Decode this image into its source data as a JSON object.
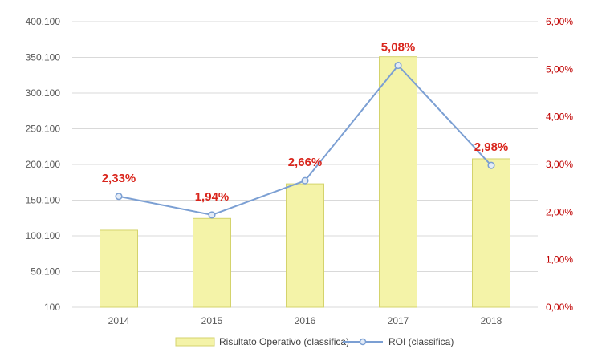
{
  "chart_data": {
    "type": "bar+line",
    "categories": [
      "2014",
      "2015",
      "2016",
      "2017",
      "2018"
    ],
    "series": [
      {
        "name": "Risultato Operativo (classifica)",
        "type": "bar",
        "axis": "left",
        "values": [
          108000,
          124500,
          173000,
          351000,
          208000
        ]
      },
      {
        "name": "ROI (classifica)",
        "type": "line",
        "axis": "right",
        "values": [
          2.33,
          1.94,
          2.66,
          5.08,
          2.98
        ],
        "labels": [
          "2,33%",
          "1,94%",
          "2,66%",
          "5,08%",
          "2,98%"
        ]
      }
    ],
    "left_axis": {
      "ylim": [
        100,
        400100
      ],
      "ticks": [
        100,
        50100,
        100100,
        150100,
        200100,
        250100,
        300100,
        350100,
        400100
      ],
      "tick_labels": [
        "100",
        "50.100",
        "100.100",
        "150.100",
        "200.100",
        "250.100",
        "300.100",
        "350.100",
        "400.100"
      ]
    },
    "right_axis": {
      "ylim": [
        0,
        6
      ],
      "ticks": [
        0,
        1,
        2,
        3,
        4,
        5,
        6
      ],
      "tick_labels": [
        "0,00%",
        "1,00%",
        "2,00%",
        "3,00%",
        "4,00%",
        "5,00%",
        "6,00%"
      ]
    },
    "legend": {
      "position": "bottom",
      "items": [
        "Risultato Operativo (classifica)",
        "ROI (classifica)"
      ]
    },
    "grid": true,
    "colors": {
      "bar_fill": "#f4f3a8",
      "bar_stroke": "#d4d36c",
      "line": "#7b9fd3",
      "marker_fill": "#e4ecf7",
      "label": "#d9251c",
      "right_axis_text": "#c00000",
      "grid": "#d9d9d9"
    }
  }
}
